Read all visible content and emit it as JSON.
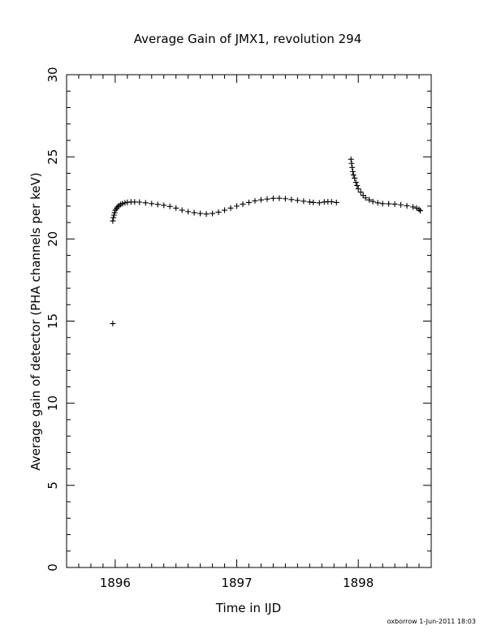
{
  "chart_data": {
    "type": "scatter",
    "marker": "plus",
    "title": "Average Gain of JMX1, revolution 294",
    "xlabel": "Time in IJD",
    "ylabel": "Average gain of detector (PHA channels per keV)",
    "xlim": [
      1895.6,
      1898.6
    ],
    "ylim": [
      0,
      30
    ],
    "xticks": [
      1896,
      1897,
      1898
    ],
    "yticks": [
      0,
      5,
      10,
      15,
      20,
      25,
      30
    ],
    "grid": false,
    "footer": "oxborrow   1-Jun-2011 18:03",
    "series": [
      {
        "points": [
          [
            1895.98,
            14.85
          ],
          [
            1895.98,
            21.1
          ],
          [
            1895.985,
            21.3
          ],
          [
            1895.99,
            21.45
          ],
          [
            1895.995,
            21.6
          ],
          [
            1896.0,
            21.75
          ],
          [
            1896.01,
            21.85
          ],
          [
            1896.02,
            21.95
          ],
          [
            1896.03,
            22.02
          ],
          [
            1896.045,
            22.1
          ],
          [
            1896.06,
            22.15
          ],
          [
            1896.08,
            22.2
          ],
          [
            1896.1,
            22.23
          ],
          [
            1896.13,
            22.25
          ],
          [
            1896.16,
            22.25
          ],
          [
            1896.2,
            22.24
          ],
          [
            1896.25,
            22.2
          ],
          [
            1896.3,
            22.15
          ],
          [
            1896.35,
            22.1
          ],
          [
            1896.4,
            22.05
          ],
          [
            1896.45,
            21.98
          ],
          [
            1896.5,
            21.88
          ],
          [
            1896.55,
            21.75
          ],
          [
            1896.6,
            21.66
          ],
          [
            1896.65,
            21.6
          ],
          [
            1896.7,
            21.55
          ],
          [
            1896.75,
            21.52
          ],
          [
            1896.8,
            21.55
          ],
          [
            1896.85,
            21.63
          ],
          [
            1896.9,
            21.75
          ],
          [
            1896.95,
            21.88
          ],
          [
            1897.0,
            22.0
          ],
          [
            1897.05,
            22.12
          ],
          [
            1897.1,
            22.22
          ],
          [
            1897.15,
            22.32
          ],
          [
            1897.2,
            22.38
          ],
          [
            1897.25,
            22.43
          ],
          [
            1897.3,
            22.47
          ],
          [
            1897.35,
            22.48
          ],
          [
            1897.4,
            22.45
          ],
          [
            1897.45,
            22.4
          ],
          [
            1897.5,
            22.35
          ],
          [
            1897.55,
            22.3
          ],
          [
            1897.6,
            22.25
          ],
          [
            1897.63,
            22.22
          ],
          [
            1897.68,
            22.2
          ],
          [
            1897.72,
            22.25
          ],
          [
            1897.75,
            22.27
          ],
          [
            1897.78,
            22.26
          ],
          [
            1897.82,
            22.22
          ],
          [
            1897.94,
            24.85
          ],
          [
            1897.945,
            24.6
          ],
          [
            1897.95,
            24.35
          ],
          [
            1897.955,
            24.1
          ],
          [
            1897.96,
            23.9
          ],
          [
            1897.97,
            23.7
          ],
          [
            1897.98,
            23.45
          ],
          [
            1897.99,
            23.25
          ],
          [
            1898.0,
            23.05
          ],
          [
            1898.02,
            22.85
          ],
          [
            1898.04,
            22.65
          ],
          [
            1898.06,
            22.5
          ],
          [
            1898.09,
            22.38
          ],
          [
            1898.12,
            22.28
          ],
          [
            1898.16,
            22.2
          ],
          [
            1898.2,
            22.15
          ],
          [
            1898.25,
            22.14
          ],
          [
            1898.3,
            22.12
          ],
          [
            1898.35,
            22.08
          ],
          [
            1898.4,
            22.02
          ],
          [
            1898.45,
            21.95
          ],
          [
            1898.48,
            21.88
          ],
          [
            1898.5,
            21.8
          ],
          [
            1898.51,
            21.72
          ]
        ]
      }
    ]
  }
}
